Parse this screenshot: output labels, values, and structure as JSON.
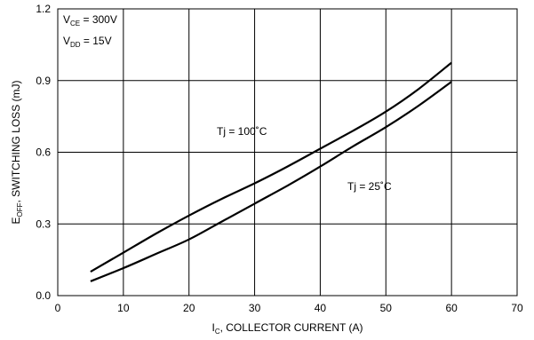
{
  "chart_data": {
    "type": "line",
    "xlabel_main": "I",
    "xlabel_sub": "C",
    "xlabel_rest": ", COLLECTOR CURRENT (A)",
    "ylabel_main": "E",
    "ylabel_sub": "OFF",
    "ylabel_rest": ", SWITCHING LOSS (mJ)",
    "xlim": [
      0,
      70
    ],
    "ylim": [
      0,
      1.2
    ],
    "x_ticks": [
      "0",
      "10",
      "20",
      "30",
      "40",
      "50",
      "60",
      "70"
    ],
    "y_ticks": [
      "0.0",
      "0.3",
      "0.6",
      "0.9",
      "1.2"
    ],
    "grid": true,
    "conditions": [
      {
        "main": "V",
        "sub": "CE",
        "rest": " = 300V"
      },
      {
        "main": "V",
        "sub": "DD",
        "rest": " = 15V"
      }
    ],
    "series": [
      {
        "name": "Tj = 100˚C",
        "x": [
          5,
          10,
          15,
          20,
          25,
          30,
          35,
          40,
          45,
          50,
          55,
          60
        ],
        "y": [
          0.1,
          0.18,
          0.26,
          0.335,
          0.405,
          0.47,
          0.54,
          0.615,
          0.69,
          0.77,
          0.865,
          0.975
        ]
      },
      {
        "name": "Tj = 25˚C",
        "x": [
          5,
          10,
          15,
          20,
          25,
          30,
          35,
          40,
          45,
          50,
          55,
          60
        ],
        "y": [
          0.06,
          0.115,
          0.175,
          0.235,
          0.31,
          0.385,
          0.46,
          0.54,
          0.625,
          0.705,
          0.795,
          0.895
        ]
      }
    ]
  }
}
